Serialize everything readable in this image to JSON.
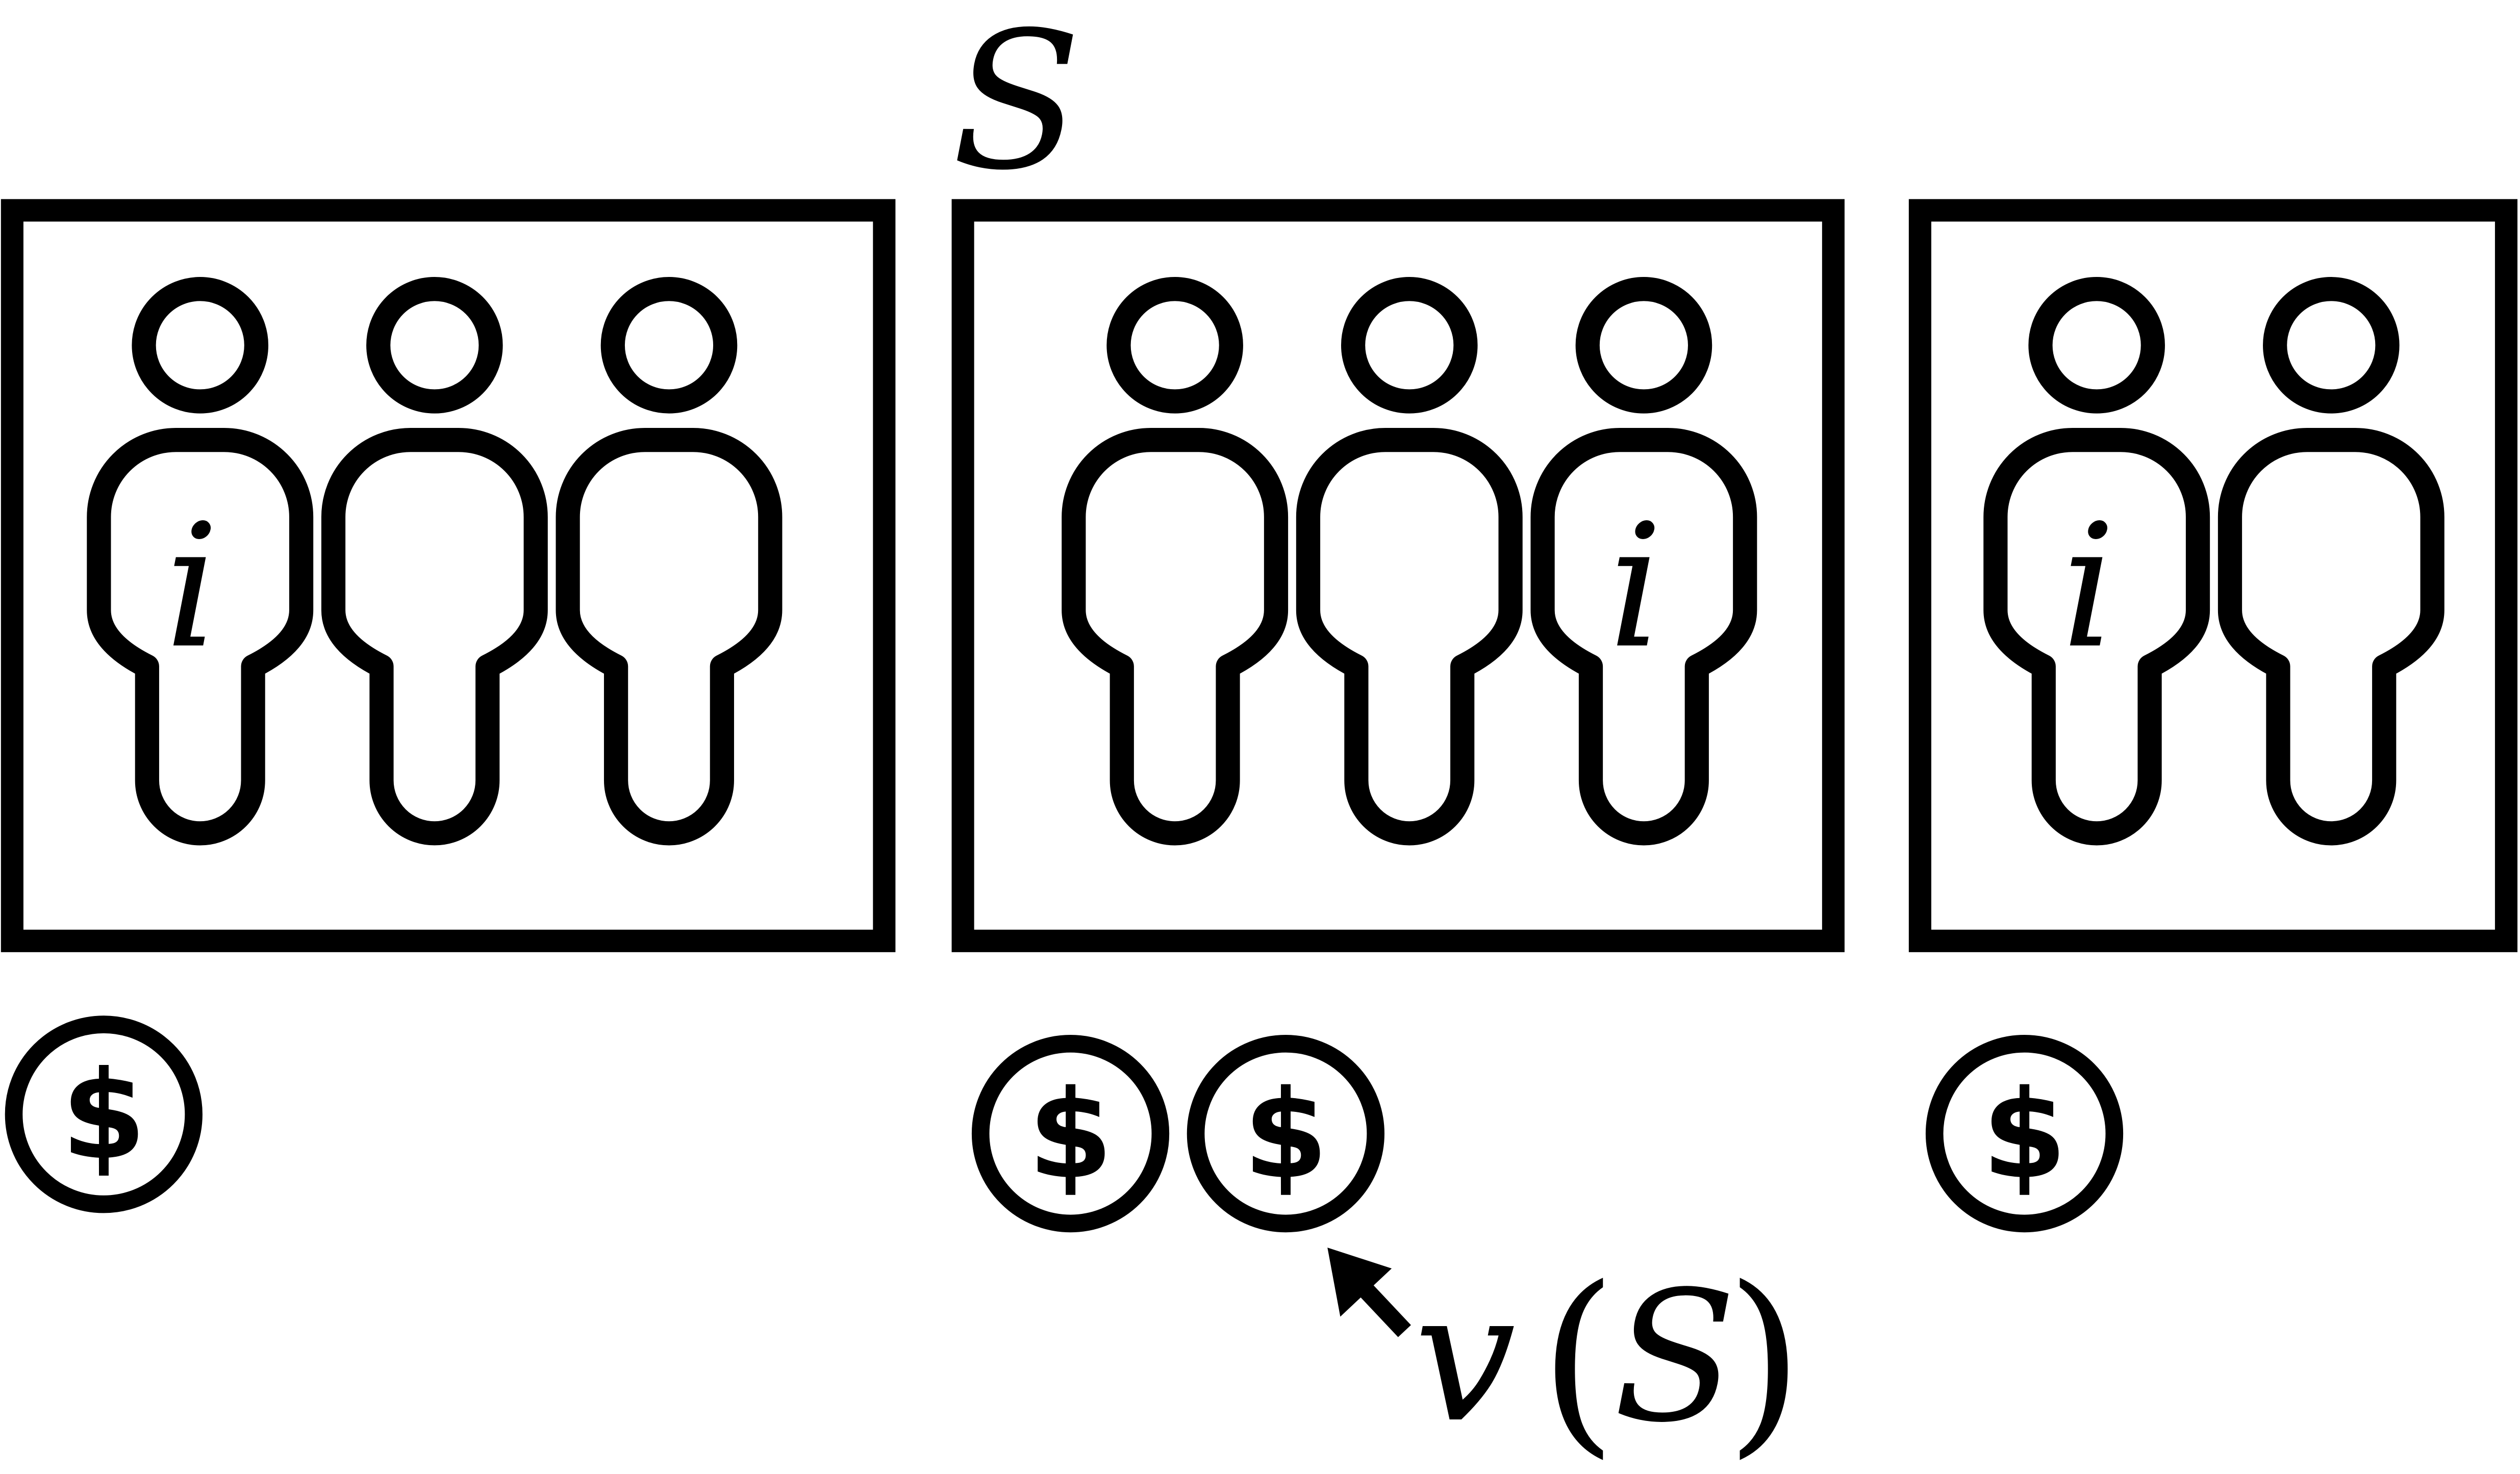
{
  "colors": {
    "stroke": "#000000",
    "background": "#ffffff"
  },
  "coalition_label": "S",
  "value_label": {
    "func": "v",
    "open_paren": "(",
    "arg": "S",
    "close_paren": ")"
  },
  "coin_symbol": "$",
  "person_marker": "i",
  "groups": [
    {
      "people": 3,
      "marked_person_index": 0,
      "coins": 1,
      "is_coalition": false
    },
    {
      "people": 3,
      "marked_person_index": 2,
      "coins": 2,
      "is_coalition": true
    },
    {
      "people": 2,
      "marked_person_index": 0,
      "coins": 1,
      "is_coalition": false
    }
  ],
  "icons": [
    "person-icon",
    "coin-icon",
    "arrow-icon"
  ]
}
